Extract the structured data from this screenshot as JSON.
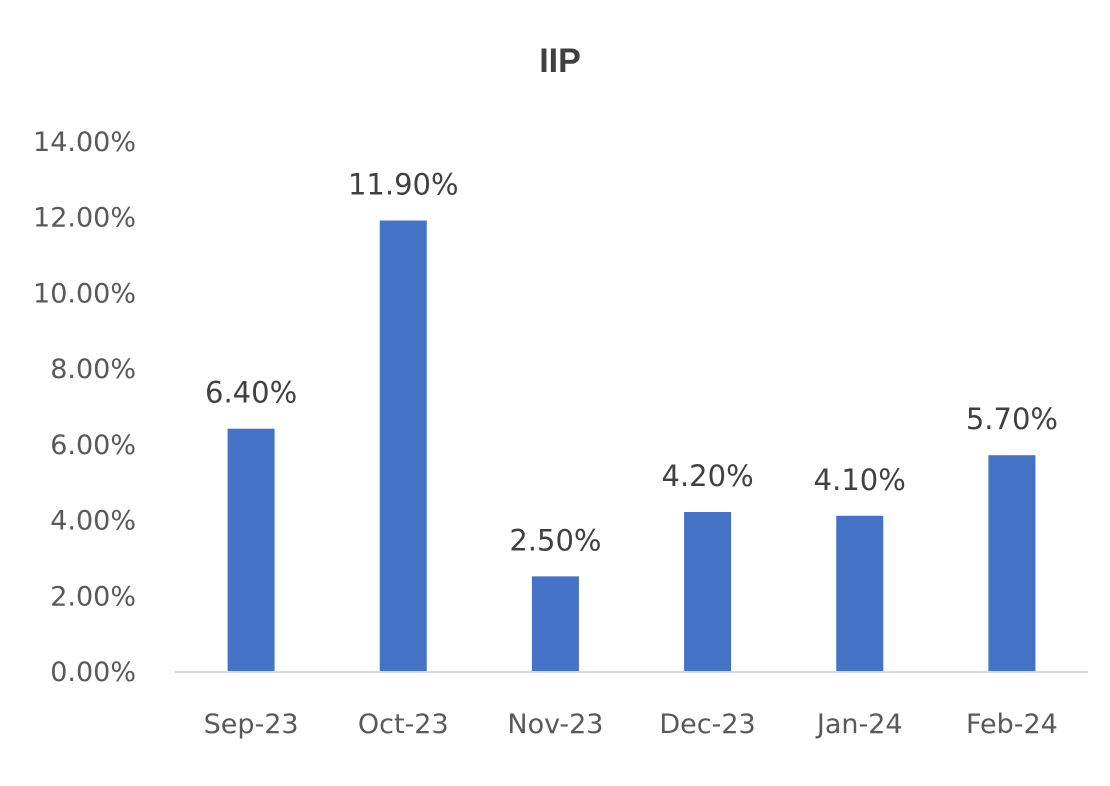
{
  "chart_data": {
    "type": "bar",
    "title": "IIP",
    "categories": [
      "Sep-23",
      "Oct-23",
      "Nov-23",
      "Dec-23",
      "Jan-24",
      "Feb-24"
    ],
    "values": [
      6.4,
      11.9,
      2.5,
      4.2,
      4.1,
      5.7
    ],
    "data_labels": [
      "6.40%",
      "11.90%",
      "2.50%",
      "4.20%",
      "4.10%",
      "5.70%"
    ],
    "y_ticks": [
      "0.00%",
      "2.00%",
      "4.00%",
      "6.00%",
      "8.00%",
      "10.00%",
      "12.00%",
      "14.00%"
    ],
    "y_tick_values": [
      0,
      2,
      4,
      6,
      8,
      10,
      12,
      14
    ],
    "xlabel": "",
    "ylabel": "",
    "ylim": [
      0,
      14
    ],
    "grid": false,
    "legend": "none",
    "bar_color": "#4472c4",
    "axis_color": "#d9d9d9"
  }
}
